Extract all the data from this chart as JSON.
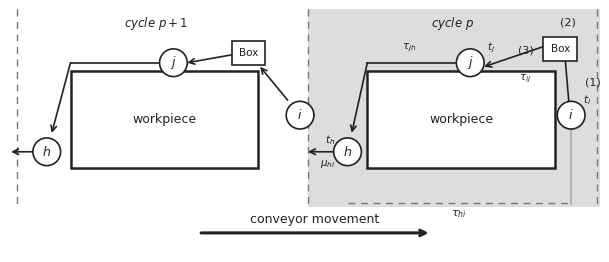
{
  "fig_width": 6.09,
  "fig_height": 2.62,
  "bg_color": "#ffffff",
  "gray_bg": "#dddddd",
  "cycle_p1_title": "cycle $p+1$",
  "cycle_p_title": "cycle $p$",
  "conveyor_label": "conveyor movement",
  "workpiece_label": "workpiece",
  "node_h_label": "$h$",
  "node_i_label": "$i$",
  "node_j_label": "$j$",
  "box_label": "Box",
  "label_tau_jh": "$\\tau_{jh}$",
  "label_tau_ij": "$\\tau_{ij}$",
  "label_tau_hi": "$\\tau_{hi}$",
  "label_mu_hi": "$\\mu_{hi}$",
  "label_t_h": "$t_h$",
  "label_t_i": "$t_i$",
  "label_t_j": "$t_j$",
  "label_1": "(1)",
  "label_2": "(2)",
  "label_3": "(3)"
}
